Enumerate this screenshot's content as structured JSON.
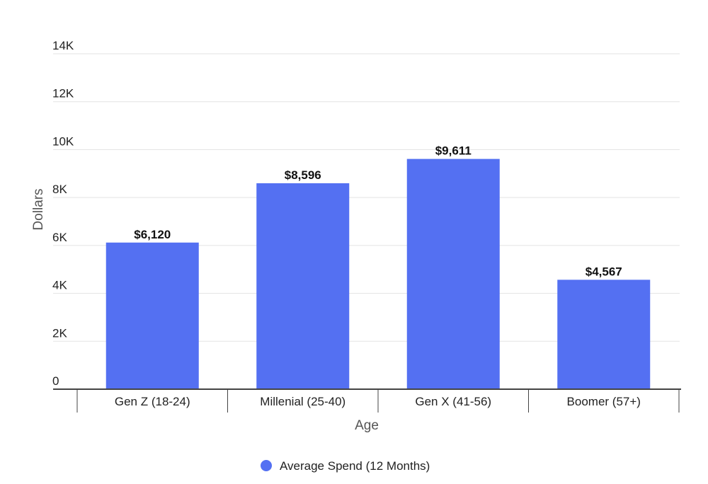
{
  "chart_data": {
    "type": "bar",
    "categories": [
      "Gen Z (18-24)",
      "Millenial (25-40)",
      "Gen X (41-56)",
      "Boomer (57+)"
    ],
    "series": [
      {
        "name": "Average Spend (12 Months)",
        "values": [
          6120,
          8596,
          9611,
          4567
        ],
        "data_labels": [
          "$6,120",
          "$8,596",
          "$9,611",
          "$4,567"
        ],
        "color": "#5470f2"
      }
    ],
    "xlabel": "Age",
    "ylabel": "Dollars",
    "ylim": [
      0,
      14000
    ],
    "yticks": [
      0,
      2000,
      4000,
      6000,
      8000,
      10000,
      12000,
      14000
    ],
    "ytick_labels": [
      "0",
      "2K",
      "4K",
      "6K",
      "8K",
      "10K",
      "12K",
      "14K"
    ],
    "grid": true,
    "legend_position": "bottom",
    "colors": {
      "bar": "#5470f2",
      "grid": "#e3e3e3",
      "axis": "#444444"
    }
  }
}
